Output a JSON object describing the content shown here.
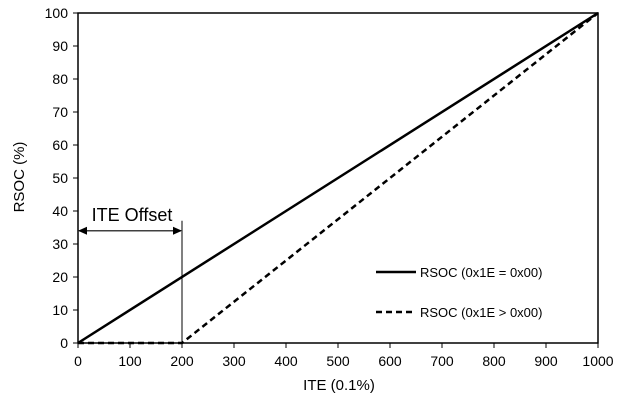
{
  "chart_data": {
    "type": "line",
    "xlabel": "ITE (0.1%)",
    "ylabel": "RSOC (%)",
    "xlim": [
      0,
      1000
    ],
    "ylim": [
      0,
      100
    ],
    "xticks": [
      0,
      100,
      200,
      300,
      400,
      500,
      600,
      700,
      800,
      900,
      1000
    ],
    "yticks": [
      0,
      10,
      20,
      30,
      40,
      50,
      60,
      70,
      80,
      90,
      100
    ],
    "grid": false,
    "legend_position": "bottom-right",
    "series": [
      {
        "name": "RSOC (0x1E = 0x00)",
        "style": "solid",
        "color": "#000000",
        "x": [
          0,
          1000
        ],
        "y": [
          0,
          100
        ]
      },
      {
        "name": "RSOC (0x1E > 0x00)",
        "style": "dashed",
        "color": "#000000",
        "x": [
          0,
          200,
          1000
        ],
        "y": [
          0,
          0,
          100
        ]
      }
    ],
    "annotations": [
      {
        "text": "ITE Offset",
        "x_from": 0,
        "x_to": 200,
        "y": 34
      }
    ]
  }
}
